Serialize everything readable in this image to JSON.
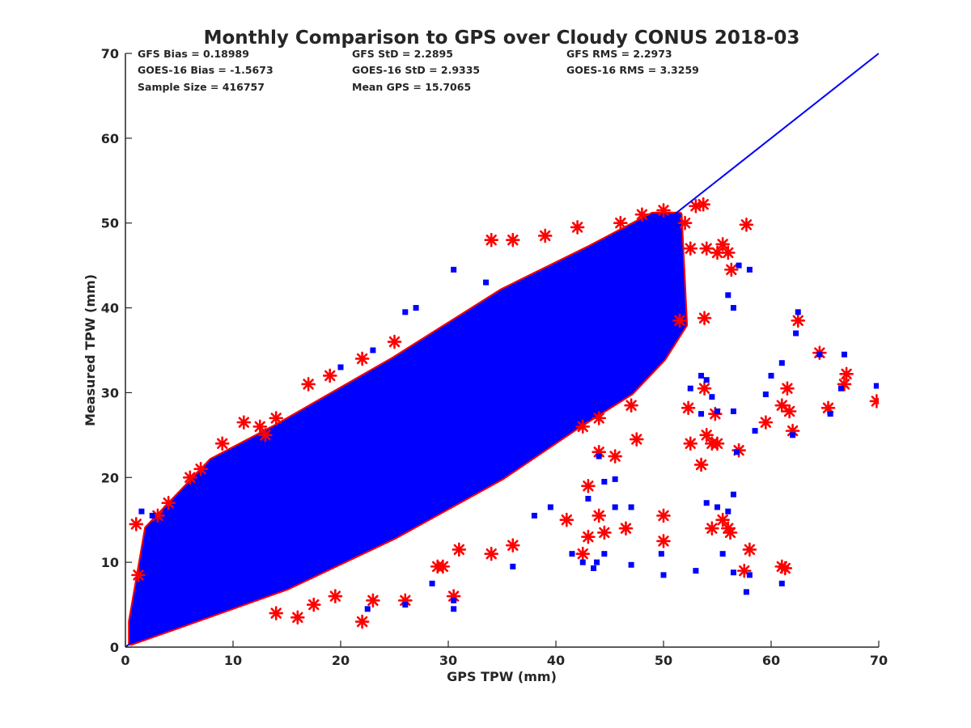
{
  "chart_data": {
    "type": "scatter",
    "title": "Monthly Comparison to GPS over Cloudy CONUS 2018-03",
    "xlabel": "GPS TPW (mm)",
    "ylabel": "Measured TPW (mm)",
    "xlim": [
      0,
      70
    ],
    "ylim": [
      0,
      70
    ],
    "xticks": [
      0,
      10,
      20,
      30,
      40,
      50,
      60,
      70
    ],
    "yticks": [
      0,
      10,
      20,
      30,
      40,
      50,
      60,
      70
    ],
    "grid": false,
    "annotations": [
      [
        "GFS Bias = 0.18989",
        "GFS StD = 2.2895",
        "GFS RMS = 2.2973"
      ],
      [
        "GOES-16 Bias = -1.5673",
        "GOES-16 StD = 2.9335",
        "GOES-16 RMS = 3.3259"
      ],
      [
        "Sample Size = 416757",
        "Mean GPS = 15.7065",
        ""
      ]
    ],
    "reference_line": {
      "name": "1:1 line",
      "x": [
        0,
        70
      ],
      "y": [
        0,
        70
      ],
      "color": "#0000ff"
    },
    "dense_band": {
      "description": "bulk of samples forming a band about the 1:1 line",
      "lower_edge": [
        [
          0.5,
          0.5
        ],
        [
          5,
          2.5
        ],
        [
          15,
          7
        ],
        [
          25,
          13
        ],
        [
          35,
          20
        ],
        [
          42,
          26
        ],
        [
          47,
          30
        ],
        [
          50,
          34
        ],
        [
          52,
          38
        ]
      ],
      "upper_edge": [
        [
          0.5,
          3
        ],
        [
          2,
          14
        ],
        [
          8,
          22
        ],
        [
          14,
          26
        ],
        [
          25,
          34
        ],
        [
          35,
          42
        ],
        [
          43,
          47
        ],
        [
          49,
          51
        ],
        [
          51.5,
          51
        ]
      ],
      "colors": [
        "#0000ff",
        "#ff0000"
      ]
    },
    "series": [
      {
        "name": "GFS",
        "marker": "asterisk",
        "color": "#ff0000",
        "points": [
          [
            1,
            14.5
          ],
          [
            1.2,
            8.5
          ],
          [
            3,
            15.5
          ],
          [
            4,
            17
          ],
          [
            6,
            20
          ],
          [
            7,
            21
          ],
          [
            9,
            24
          ],
          [
            11,
            26.5
          ],
          [
            12.5,
            26
          ],
          [
            13,
            25
          ],
          [
            14,
            27
          ],
          [
            17,
            31
          ],
          [
            19,
            32
          ],
          [
            22,
            34
          ],
          [
            25,
            36
          ],
          [
            34,
            48
          ],
          [
            36,
            48
          ],
          [
            39,
            48.5
          ],
          [
            42,
            49.5
          ],
          [
            46,
            50
          ],
          [
            48,
            51
          ],
          [
            50,
            51.5
          ],
          [
            52,
            50
          ],
          [
            52.5,
            47
          ],
          [
            53,
            52
          ],
          [
            53.7,
            52.2
          ],
          [
            54,
            47
          ],
          [
            55,
            46.5
          ],
          [
            55.5,
            47.5
          ],
          [
            56,
            46.5
          ],
          [
            56.3,
            44.5
          ],
          [
            57.7,
            49.8
          ],
          [
            51.5,
            38.5
          ],
          [
            53.8,
            38.8
          ],
          [
            47,
            28.5
          ],
          [
            44,
            27
          ],
          [
            42.5,
            26
          ],
          [
            44,
            23
          ],
          [
            47.5,
            24.5
          ],
          [
            45.5,
            22.5
          ],
          [
            43,
            19
          ],
          [
            41,
            15
          ],
          [
            44,
            15.5
          ],
          [
            44.5,
            13.5
          ],
          [
            43,
            13
          ],
          [
            42.5,
            11
          ],
          [
            46.5,
            14
          ],
          [
            50,
            15.5
          ],
          [
            50,
            12.5
          ],
          [
            36,
            12
          ],
          [
            34,
            11
          ],
          [
            31,
            11.5
          ],
          [
            29,
            9.5
          ],
          [
            29.5,
            9.5
          ],
          [
            30.5,
            6
          ],
          [
            26,
            5.5
          ],
          [
            23,
            5.5
          ],
          [
            22,
            3
          ],
          [
            16,
            3.5
          ],
          [
            19.5,
            6
          ],
          [
            14,
            4
          ],
          [
            17.5,
            5
          ],
          [
            52.5,
            24
          ],
          [
            54,
            25
          ],
          [
            54.5,
            24
          ],
          [
            55,
            24
          ],
          [
            53.5,
            21.5
          ],
          [
            53.8,
            30.5
          ],
          [
            52.3,
            28.2
          ],
          [
            54.8,
            27.5
          ],
          [
            57,
            23.2
          ],
          [
            56,
            14
          ],
          [
            55.5,
            15
          ],
          [
            56.2,
            13.5
          ],
          [
            54.5,
            14
          ],
          [
            58,
            11.5
          ],
          [
            57.5,
            9
          ],
          [
            61,
            9.5
          ],
          [
            61.3,
            9.3
          ],
          [
            59.5,
            26.5
          ],
          [
            61,
            28.5
          ],
          [
            61.5,
            30.5
          ],
          [
            61.7,
            27.8
          ],
          [
            62,
            25.5
          ],
          [
            62.5,
            38.5
          ],
          [
            64.5,
            34.7
          ],
          [
            65.3,
            28.2
          ],
          [
            66.8,
            31
          ],
          [
            67,
            32.2
          ],
          [
            69.8,
            29
          ]
        ]
      },
      {
        "name": "GOES-16",
        "marker": "square",
        "color": "#0000ff",
        "points": [
          [
            30.5,
            4.5
          ],
          [
            22.5,
            4.5
          ],
          [
            26,
            5
          ],
          [
            28.5,
            7.5
          ],
          [
            30.5,
            5.5
          ],
          [
            36,
            9.5
          ],
          [
            41.5,
            11
          ],
          [
            42.5,
            10
          ],
          [
            43.5,
            9.3
          ],
          [
            43.8,
            10
          ],
          [
            44.5,
            11
          ],
          [
            47,
            9.7
          ],
          [
            50,
            8.5
          ],
          [
            49.8,
            11
          ],
          [
            53,
            9
          ],
          [
            55.5,
            11
          ],
          [
            56.5,
            8.8
          ],
          [
            57.7,
            6.5
          ],
          [
            58,
            8.5
          ],
          [
            61,
            7.5
          ],
          [
            54,
            17
          ],
          [
            56.5,
            18
          ],
          [
            56,
            16
          ],
          [
            56.8,
            23
          ],
          [
            55,
            16.5
          ],
          [
            53.5,
            27.5
          ],
          [
            54.5,
            29.5
          ],
          [
            55,
            27.8
          ],
          [
            56.5,
            27.8
          ],
          [
            54,
            31.5
          ],
          [
            53.5,
            32
          ],
          [
            52.5,
            30.5
          ],
          [
            58.5,
            25.5
          ],
          [
            59.5,
            29.8
          ],
          [
            60,
            32
          ],
          [
            61,
            33.5
          ],
          [
            62.5,
            39.5
          ],
          [
            62.3,
            37
          ],
          [
            62,
            25
          ],
          [
            64.5,
            34.5
          ],
          [
            65.5,
            27.5
          ],
          [
            66.5,
            30.5
          ],
          [
            66.8,
            34.5
          ],
          [
            69.8,
            30.8
          ],
          [
            56,
            41.5
          ],
          [
            56.5,
            40
          ],
          [
            58,
            44.5
          ],
          [
            57,
            45
          ],
          [
            44.5,
            19.5
          ],
          [
            43,
            17.5
          ],
          [
            45.5,
            16.5
          ],
          [
            44,
            22.5
          ],
          [
            47,
            16.5
          ],
          [
            45.5,
            19.8
          ],
          [
            39.5,
            16.5
          ],
          [
            38,
            15.5
          ],
          [
            35,
            40.5
          ],
          [
            30.5,
            44.5
          ],
          [
            33.5,
            43
          ],
          [
            26,
            39.5
          ],
          [
            27,
            40
          ],
          [
            20,
            33
          ],
          [
            23,
            35
          ],
          [
            1.5,
            16
          ],
          [
            2.5,
            15.5
          ]
        ]
      }
    ]
  }
}
